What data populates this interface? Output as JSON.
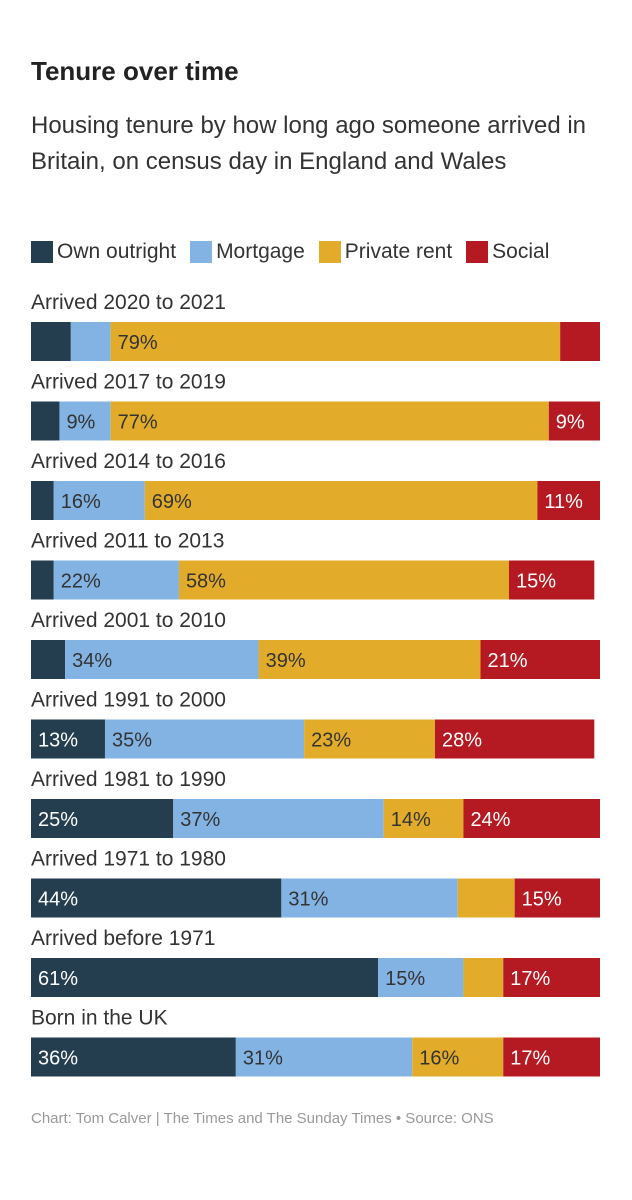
{
  "title": "Tenure over time",
  "subtitle": "Housing tenure by how long ago someone arrived in Britain, on census day in England and Wales",
  "footer": "Chart: Tom Calver | The Times and The Sunday Times • Source: ONS",
  "colors": {
    "own_outright": "#243e4f",
    "mortgage": "#83b3e3",
    "private_rent": "#e2ac2a",
    "social": "#b51a23"
  },
  "chart_data": {
    "type": "bar",
    "orientation": "horizontal",
    "stacked": true,
    "xlim": [
      0,
      100
    ],
    "legend_position": "top",
    "categories": [
      "Arrived 2020 to 2021",
      "Arrived 2017 to 2019",
      "Arrived 2014 to 2016",
      "Arrived 2011 to 2013",
      "Arrived 2001 to 2010",
      "Arrived 1991 to 2000",
      "Arrived 1981 to 1990",
      "Arrived 1971 to 1980",
      "Arrived before 1971",
      "Born in the UK"
    ],
    "series": [
      {
        "name": "Own outright",
        "color": "#243e4f",
        "values": [
          7,
          5,
          4,
          4,
          6,
          13,
          25,
          44,
          61,
          36
        ],
        "labels": [
          "",
          "",
          "",
          "",
          "",
          "13%",
          "25%",
          "44%",
          "61%",
          "36%"
        ]
      },
      {
        "name": "Mortgage",
        "color": "#83b3e3",
        "values": [
          7,
          9,
          16,
          22,
          34,
          35,
          37,
          31,
          15,
          31
        ],
        "labels": [
          "",
          "9%",
          "16%",
          "22%",
          "34%",
          "35%",
          "37%",
          "31%",
          "15%",
          "31%"
        ]
      },
      {
        "name": "Private rent",
        "color": "#e2ac2a",
        "values": [
          79,
          77,
          69,
          58,
          39,
          23,
          14,
          10,
          7,
          16
        ],
        "labels": [
          "79%",
          "77%",
          "69%",
          "58%",
          "39%",
          "23%",
          "14%",
          "",
          "",
          "16%"
        ]
      },
      {
        "name": "Social",
        "color": "#b51a23",
        "values": [
          7,
          9,
          11,
          15,
          21,
          28,
          24,
          15,
          17,
          17
        ],
        "labels": [
          "",
          "9%",
          "11%",
          "15%",
          "21%",
          "28%",
          "24%",
          "15%",
          "17%",
          "17%"
        ]
      }
    ]
  }
}
